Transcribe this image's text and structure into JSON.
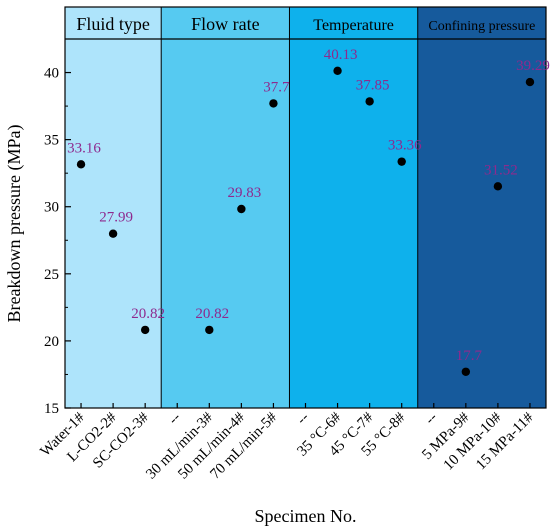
{
  "chart_data": {
    "type": "scatter",
    "xlabel": "Specimen No.",
    "ylabel": "Breakdown pressure (MPa)",
    "ylim": [
      15,
      42.5
    ],
    "yticks": [
      15,
      20,
      25,
      30,
      35,
      40
    ],
    "categories": [
      "Water-1#",
      "L-CO2-2#",
      "SC-CO2-3#",
      "--",
      "30 mL/min-3#",
      "50 mL/min-4#",
      "70 mL/min-5#",
      "--",
      "35 °C-6#",
      "45 °C-7#",
      "55 °C-8#",
      "--",
      "5 MPa-9#",
      "10 MPa-10#",
      "15 MPa-11#"
    ],
    "panels": [
      {
        "title": "Fluid type",
        "start": 0,
        "end": 2,
        "color": "#aee4fb"
      },
      {
        "title": "Flow rate",
        "start": 3,
        "end": 6,
        "color": "#56caf1"
      },
      {
        "title": "Temperature",
        "start": 7,
        "end": 10,
        "color": "#0eb1ec"
      },
      {
        "title": "Confining pressure",
        "start": 11,
        "end": 14,
        "color": "#165a9c"
      }
    ],
    "points": [
      {
        "x": 0,
        "y": 33.16,
        "label": "33.16"
      },
      {
        "x": 1,
        "y": 27.99,
        "label": "27.99"
      },
      {
        "x": 2,
        "y": 20.82,
        "label": "20.82"
      },
      {
        "x": 4,
        "y": 20.82,
        "label": "20.82"
      },
      {
        "x": 5,
        "y": 29.83,
        "label": "29.83"
      },
      {
        "x": 6,
        "y": 37.7,
        "label": "37.7"
      },
      {
        "x": 8,
        "y": 40.13,
        "label": "40.13"
      },
      {
        "x": 9,
        "y": 37.85,
        "label": "37.85"
      },
      {
        "x": 10,
        "y": 33.36,
        "label": "33.36"
      },
      {
        "x": 12,
        "y": 17.7,
        "label": "17.7"
      },
      {
        "x": 13,
        "y": 31.52,
        "label": "31.52"
      },
      {
        "x": 14,
        "y": 39.29,
        "label": "39.29"
      }
    ],
    "marker_color": "#000000",
    "label_color": "#8e2a8e",
    "grid": false,
    "legend": "none"
  }
}
